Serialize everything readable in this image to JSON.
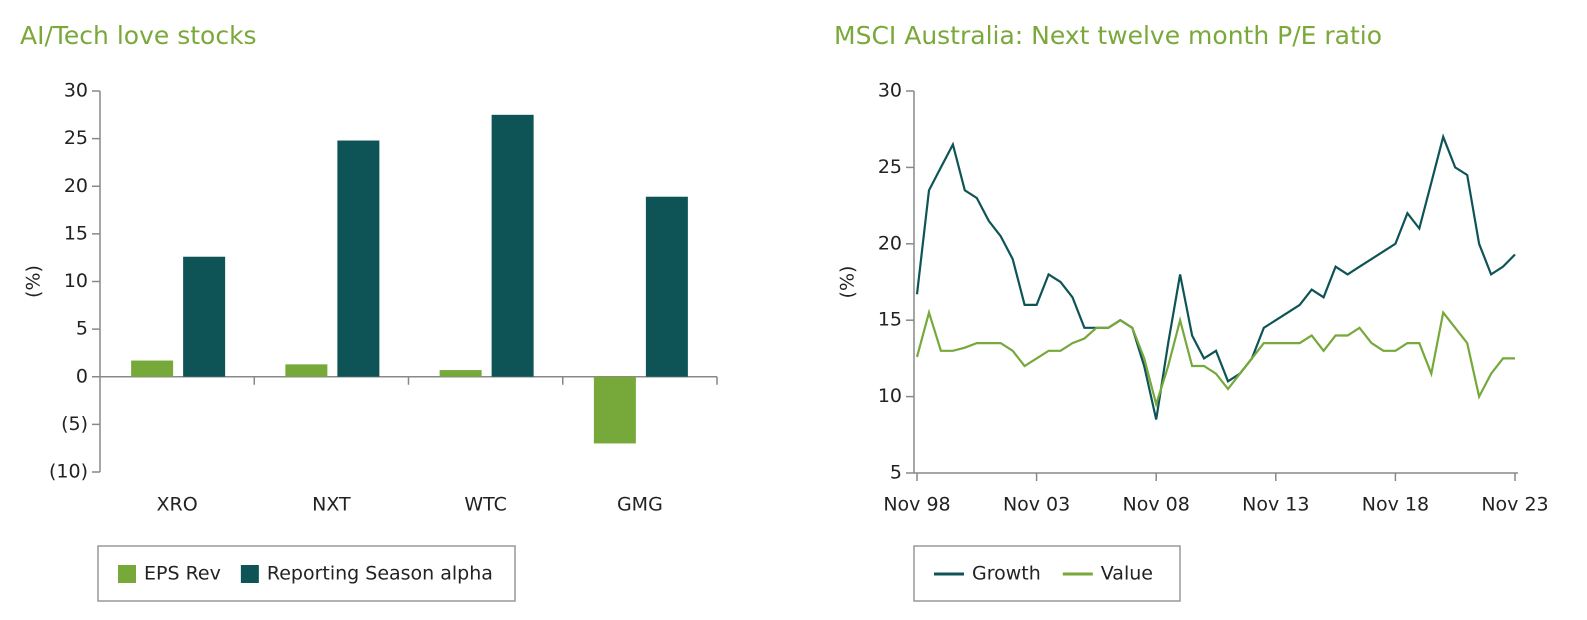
{
  "chart_data": [
    {
      "type": "bar",
      "title": "AI/Tech love stocks",
      "ylabel": "(%)",
      "categories": [
        "XRO",
        "NXT",
        "WTC",
        "GMG"
      ],
      "series": [
        {
          "name": "EPS Rev",
          "color": "#76a83a",
          "values": [
            1.7,
            1.3,
            0.7,
            -7.0
          ]
        },
        {
          "name": "Reporting Season alpha",
          "color": "#0e5457",
          "values": [
            12.6,
            24.8,
            27.5,
            18.9
          ]
        }
      ],
      "ylim": [
        -10,
        30
      ],
      "yticks": [
        {
          "value": -10,
          "label": "(10)"
        },
        {
          "value": -5,
          "label": "(5)"
        },
        0,
        5,
        10,
        15,
        20,
        25,
        30
      ]
    },
    {
      "type": "line",
      "title": "MSCI Australia: Next twelve month P/E ratio",
      "ylabel": "(%)",
      "x": [
        "Nov 98",
        "May 99",
        "Nov 99",
        "May 00",
        "Nov 00",
        "May 01",
        "Nov 01",
        "May 02",
        "Nov 02",
        "May 03",
        "Nov 03",
        "May 04",
        "Nov 04",
        "May 05",
        "Nov 05",
        "May 06",
        "Nov 06",
        "May 07",
        "Nov 07",
        "May 08",
        "Nov 08",
        "May 09",
        "Nov 09",
        "May 10",
        "Nov 10",
        "May 11",
        "Nov 11",
        "May 12",
        "Nov 12",
        "May 13",
        "Nov 13",
        "May 14",
        "Nov 14",
        "May 15",
        "Nov 15",
        "May 16",
        "Nov 16",
        "May 17",
        "Nov 17",
        "May 18",
        "Nov 18",
        "May 19",
        "Nov 19",
        "May 20",
        "Nov 20",
        "May 21",
        "Nov 21",
        "May 22",
        "Nov 22",
        "May 23",
        "Nov 23"
      ],
      "series": [
        {
          "name": "Growth",
          "color": "#0e5457",
          "values": [
            16.7,
            23.5,
            25,
            26.5,
            23.5,
            23,
            21.5,
            20.5,
            19,
            16,
            16,
            18,
            17.5,
            16.5,
            14.5,
            14.5,
            14.5,
            15,
            14.5,
            12,
            8.5,
            13.5,
            18,
            14,
            12.5,
            13,
            11,
            11.5,
            12.5,
            14.5,
            15,
            15.5,
            16,
            17,
            16.5,
            18.5,
            18,
            18.5,
            19,
            19.5,
            20,
            22,
            21,
            24,
            27,
            25,
            24.5,
            20,
            18,
            18.5,
            19.3
          ]
        },
        {
          "name": "Value",
          "color": "#76a83a",
          "values": [
            12.6,
            15.5,
            13,
            13,
            13.2,
            13.5,
            13.5,
            13.5,
            13,
            12,
            12.5,
            13,
            13,
            13.5,
            13.8,
            14.5,
            14.5,
            15,
            14.5,
            12.5,
            9.5,
            12,
            15,
            12,
            12,
            11.5,
            10.5,
            11.5,
            12.5,
            13.5,
            13.5,
            13.5,
            13.5,
            14,
            13,
            14,
            14,
            14.5,
            13.5,
            13,
            13,
            13.5,
            13.5,
            11.5,
            15.5,
            14.5,
            13.5,
            10,
            11.5,
            12.5,
            12.5
          ]
        }
      ],
      "ylim": [
        5,
        30
      ],
      "yticks": [
        5,
        10,
        15,
        20,
        25,
        30
      ],
      "xticks": [
        "Nov 98",
        "Nov 03",
        "Nov 08",
        "Nov 13",
        "Nov 18",
        "Nov 23"
      ]
    }
  ]
}
